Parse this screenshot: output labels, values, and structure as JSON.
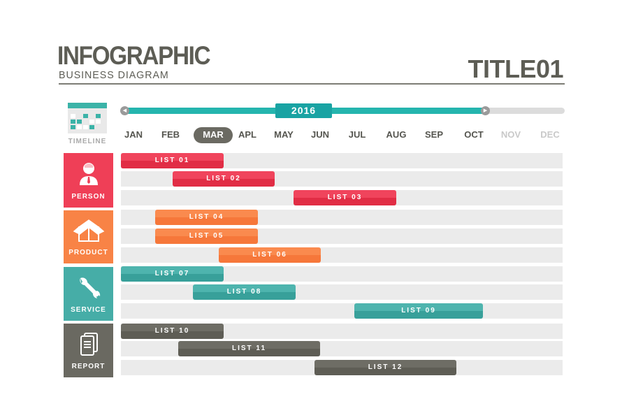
{
  "header": {
    "title": "INFOGRAPHIC",
    "subtitle": "BUSINESS DIAGRAM",
    "right_title": "TITLE01"
  },
  "timeline": {
    "label": "TIMELINE",
    "year": "2016",
    "progress_through": "OCT",
    "active_month": "MAR",
    "months": [
      "JAN",
      "FEB",
      "MAR",
      "APL",
      "MAY",
      "JUN",
      "JUL",
      "AUG",
      "SEP",
      "OCT",
      "NOV",
      "DEC"
    ]
  },
  "colors": {
    "person": "#ef3f57",
    "product": "#f88346",
    "service": "#46ada7",
    "report": "#6a6961",
    "track": "#25b5ae"
  },
  "categories": [
    {
      "label": "PERSON",
      "icon": "person-icon"
    },
    {
      "label": "PRODUCT",
      "icon": "box-icon"
    },
    {
      "label": "SERVICE",
      "icon": "wrench-icon"
    },
    {
      "label": "REPORT",
      "icon": "document-icon"
    }
  ],
  "tasks": [
    {
      "label": "LIST 01",
      "category": "PERSON",
      "start": "JAN",
      "end": "MAR"
    },
    {
      "label": "LIST 02",
      "category": "PERSON",
      "start": "FEB",
      "end": "APL"
    },
    {
      "label": "LIST 03",
      "category": "PERSON",
      "start": "MAY",
      "end": "JUL"
    },
    {
      "label": "LIST 04",
      "category": "PRODUCT",
      "start": "FEB",
      "end": "APL"
    },
    {
      "label": "LIST 05",
      "category": "PRODUCT",
      "start": "FEB",
      "end": "APL"
    },
    {
      "label": "LIST 06",
      "category": "PRODUCT",
      "start": "MAR",
      "end": "MAY"
    },
    {
      "label": "LIST 07",
      "category": "SERVICE",
      "start": "JAN",
      "end": "MAR"
    },
    {
      "label": "LIST 08",
      "category": "SERVICE",
      "start": "FEB",
      "end": "MAY"
    },
    {
      "label": "LIST 09",
      "category": "SERVICE",
      "start": "JUL",
      "end": "SEP"
    },
    {
      "label": "LIST 10",
      "category": "REPORT",
      "start": "JAN",
      "end": "MAR"
    },
    {
      "label": "LIST 11",
      "category": "REPORT",
      "start": "FEB",
      "end": "JUN"
    },
    {
      "label": "LIST 12",
      "category": "REPORT",
      "start": "JUN",
      "end": "SEP"
    }
  ]
}
